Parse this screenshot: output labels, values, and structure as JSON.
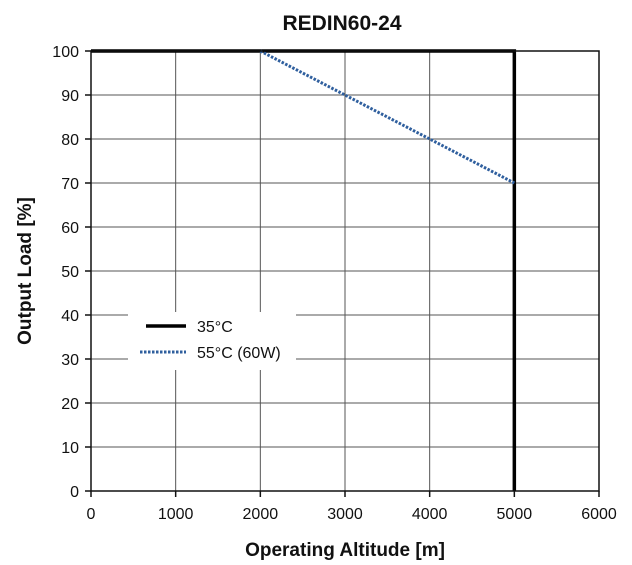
{
  "chart_data": {
    "type": "line",
    "title": "REDIN60-24",
    "xlabel": "Operating Altitude [m]",
    "ylabel": "Output Load [%]",
    "xlim": [
      0,
      6000
    ],
    "ylim": [
      0,
      100
    ],
    "xticks": [
      0,
      1000,
      2000,
      3000,
      4000,
      5000,
      6000
    ],
    "yticks": [
      0,
      10,
      20,
      30,
      40,
      50,
      60,
      70,
      80,
      90,
      100
    ],
    "grid": true,
    "legend_position": "left",
    "series": [
      {
        "name": "35°C",
        "style": "solid",
        "color": "#000000",
        "x": [
          0,
          5000,
          5000
        ],
        "y": [
          100,
          100,
          0
        ]
      },
      {
        "name": "55°C (60W)",
        "style": "dotted",
        "color": "#2f5f9e",
        "x": [
          2000,
          5000
        ],
        "y": [
          100,
          70
        ]
      }
    ]
  }
}
